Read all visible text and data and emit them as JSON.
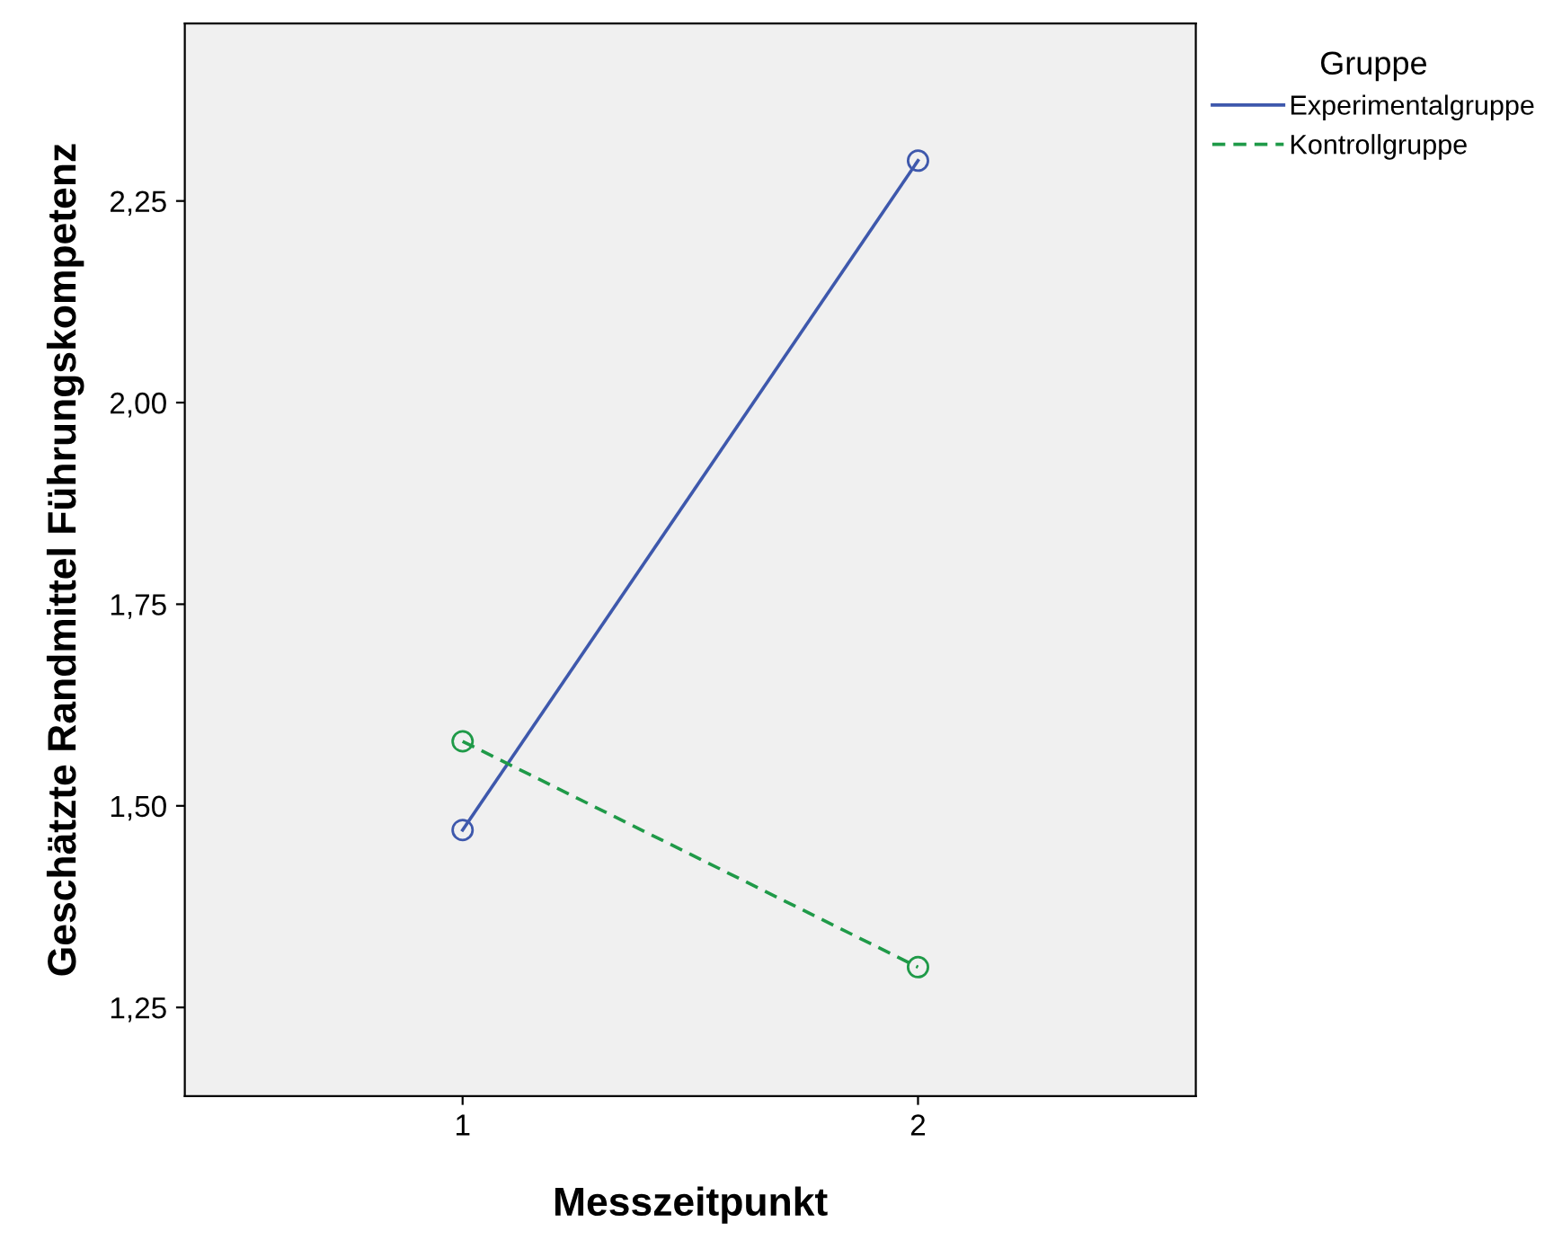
{
  "chart_data": {
    "type": "line",
    "xlabel": "Messzeitpunkt",
    "ylabel": "Geschätzte Randmittel Führungskompetenz",
    "legend_title": "Gruppe",
    "legend": "top right",
    "grid": false,
    "marker": "circle",
    "x": [
      1,
      2
    ],
    "series": [
      {
        "name": "Experimentalgruppe",
        "color": "#3e58ac",
        "line_style": "solid",
        "values": [
          1.47,
          2.3
        ]
      },
      {
        "name": "Kontrollgruppe",
        "color": "#1f9a48",
        "line_style": "dashed",
        "values": [
          1.58,
          1.3
        ]
      }
    ],
    "xlim": [
      0.39,
      2.61
    ],
    "xticks": [
      1,
      2
    ],
    "ylim": [
      1.14,
      2.47
    ],
    "yticks": [
      {
        "value": 1.25,
        "label": "1,25"
      },
      {
        "value": 1.5,
        "label": "1,50"
      },
      {
        "value": 1.75,
        "label": "1,75"
      },
      {
        "value": 2.0,
        "label": "2,00"
      },
      {
        "value": 2.25,
        "label": "2,25"
      }
    ]
  }
}
